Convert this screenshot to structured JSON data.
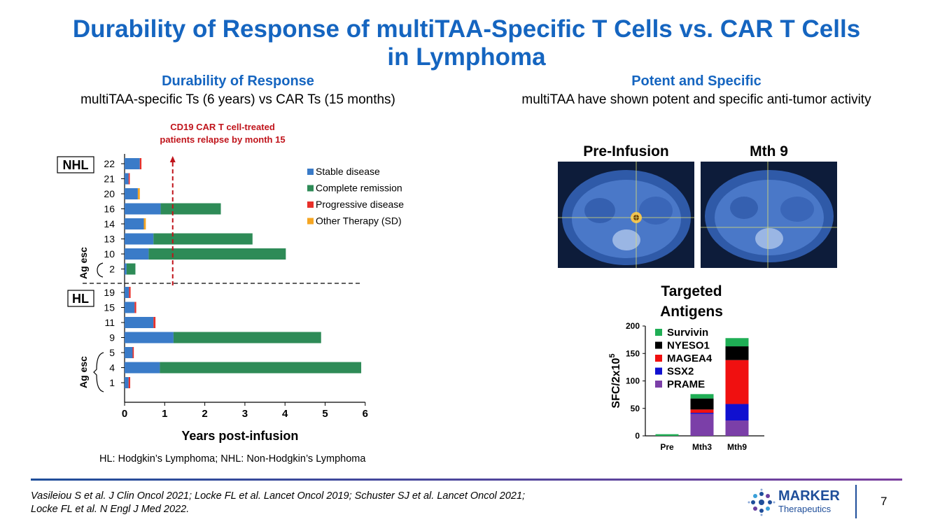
{
  "title_line1": "Durability of Response of multiTAA-Specific T Cells vs. CAR T Cells",
  "title_line2": "in Lymphoma",
  "left_heading": "Durability of Response",
  "left_subtitle": "multiTAA-specific Ts (6 years) vs CAR Ts (15 months)",
  "right_heading": "Potent and Specific",
  "right_subtitle": "multiTAA have shown potent and specific anti-tumor activity",
  "scan_labels": [
    "Pre-Infusion",
    "Mth 9"
  ],
  "footnote_hl": "HL: Hodgkin’s Lymphoma; NHL: Non-Hodgkin’s Lymphoma",
  "references_line1": "Vasileiou S et al. J Clin Oncol 2021; Locke FL et al. Lancet Oncol 2019; Schuster SJ et al. Lancet Oncol 2021;",
  "references_line2": "Locke FL et al. N Engl J Med 2022.",
  "logo_main": "MARKER",
  "logo_sub": "Therapeutics",
  "page_number": "7",
  "chart_data": [
    {
      "type": "bar",
      "orientation": "horizontal",
      "stacked": true,
      "xlabel": "Years post-infusion",
      "xlim": [
        0,
        6
      ],
      "xticks": [
        "0",
        "1",
        "2",
        "3",
        "4",
        "5",
        "6"
      ],
      "annotation": {
        "line1": "CD19 CAR T cell-treated",
        "line2": "patients relapse by month 15",
        "x": 1.2
      },
      "groups": [
        {
          "label": "NHL",
          "subgroup": "Ag esc",
          "patients": [
            {
              "id": "22",
              "stable": 0.38,
              "complete": 0,
              "progressive": 0.04,
              "other": 0
            },
            {
              "id": "21",
              "stable": 0.1,
              "complete": 0,
              "progressive": 0.03,
              "other": 0
            },
            {
              "id": "20",
              "stable": 0.33,
              "complete": 0,
              "progressive": 0,
              "other": 0.05
            },
            {
              "id": "16",
              "stable": 0.9,
              "complete": 1.5,
              "progressive": 0,
              "other": 0
            },
            {
              "id": "14",
              "stable": 0.48,
              "complete": 0,
              "progressive": 0,
              "other": 0.05
            },
            {
              "id": "13",
              "stable": 0.72,
              "complete": 2.47,
              "progressive": 0,
              "other": 0
            },
            {
              "id": "10",
              "stable": 0.6,
              "complete": 3.42,
              "progressive": 0,
              "other": 0
            },
            {
              "id": "2",
              "stable": 0.05,
              "complete": 0.22,
              "progressive": 0,
              "other": 0
            }
          ]
        },
        {
          "label": "HL",
          "subgroup": "Ag esc",
          "patients": [
            {
              "id": "19",
              "stable": 0.11,
              "complete": 0,
              "progressive": 0.04,
              "other": 0
            },
            {
              "id": "15",
              "stable": 0.25,
              "complete": 0,
              "progressive": 0.04,
              "other": 0
            },
            {
              "id": "11",
              "stable": 0.72,
              "complete": 0,
              "progressive": 0.05,
              "other": 0
            },
            {
              "id": "9",
              "stable": 1.22,
              "complete": 3.68,
              "progressive": 0,
              "other": 0
            },
            {
              "id": "5",
              "stable": 0.2,
              "complete": 0,
              "progressive": 0.03,
              "other": 0
            },
            {
              "id": "4",
              "stable": 0.88,
              "complete": 5.02,
              "progressive": 0,
              "other": 0
            },
            {
              "id": "1",
              "stable": 0.1,
              "complete": 0,
              "progressive": 0.04,
              "other": 0
            }
          ]
        }
      ],
      "legend": [
        {
          "name": "Stable disease",
          "color": "#3A7BC8"
        },
        {
          "name": "Complete remission",
          "color": "#2E8B57"
        },
        {
          "name": "Progressive disease",
          "color": "#E8302A"
        },
        {
          "name": "Other Therapy (SD)",
          "color": "#F5A623"
        }
      ]
    },
    {
      "type": "bar",
      "orientation": "vertical",
      "stacked": true,
      "title_line1": "Targeted",
      "title_line2": "Antigens",
      "ylabel": "SFC/2x10",
      "ylabel_sup": "5",
      "ylim": [
        0,
        200
      ],
      "yticks": [
        "0",
        "50",
        "100",
        "150",
        "200"
      ],
      "categories": [
        "Pre",
        "Mth3",
        "Mth9"
      ],
      "series": [
        {
          "name": "PRAME",
          "color": "#7B3FA8",
          "values": [
            0,
            40,
            28
          ]
        },
        {
          "name": "SSX2",
          "color": "#1010D0",
          "values": [
            0,
            2,
            30
          ]
        },
        {
          "name": "MAGEA4",
          "color": "#F01010",
          "values": [
            0,
            6,
            80
          ]
        },
        {
          "name": "NYESO1",
          "color": "#000000",
          "values": [
            0,
            20,
            25
          ]
        },
        {
          "name": "Survivin",
          "color": "#1FAE55",
          "values": [
            3,
            8,
            15
          ]
        }
      ],
      "legend_order": [
        "Survivin",
        "NYESO1",
        "MAGEA4",
        "SSX2",
        "PRAME"
      ]
    }
  ]
}
